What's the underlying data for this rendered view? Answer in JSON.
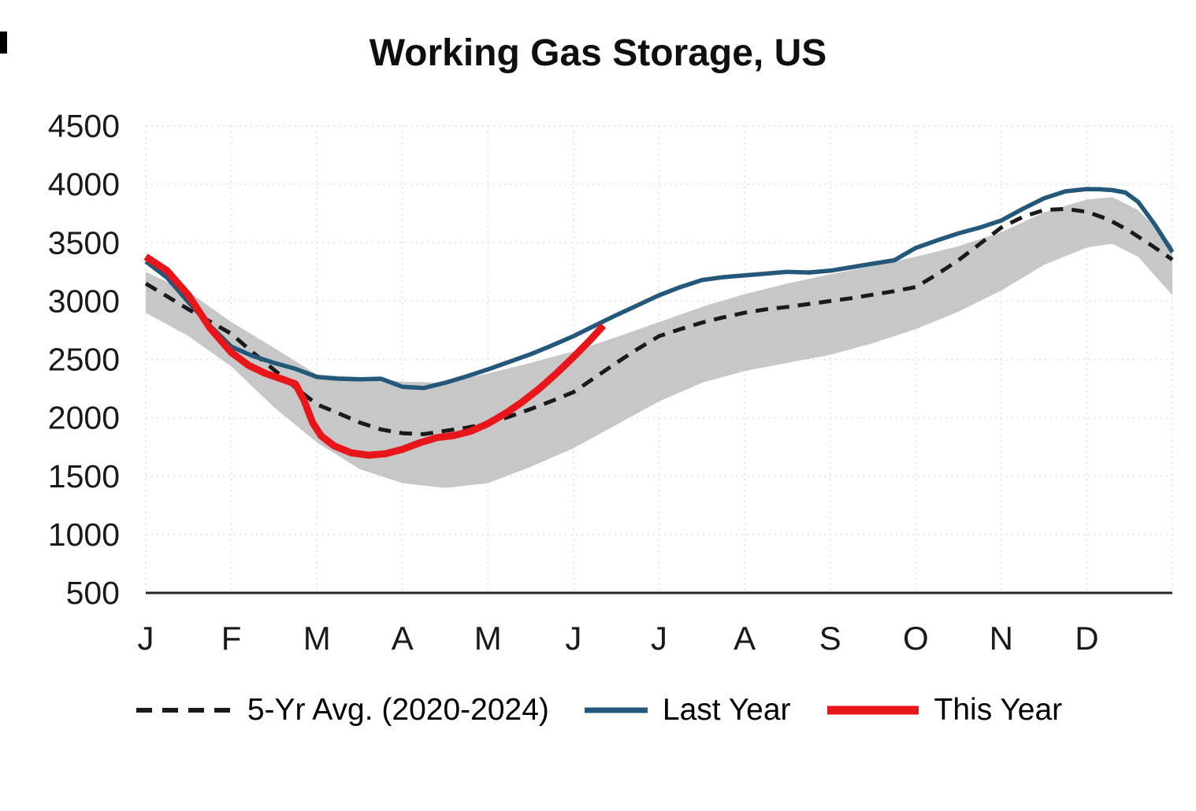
{
  "chart_data": {
    "type": "line",
    "title": "Working Gas Storage, US",
    "xlabel": "",
    "ylabel": "",
    "x_unit": "months, 0 = Jan 1, 12 = Dec 31",
    "ylim": [
      500,
      4500
    ],
    "yticks": [
      500,
      1000,
      1500,
      2000,
      2500,
      3000,
      3500,
      4000,
      4500
    ],
    "month_labels": [
      "J",
      "F",
      "M",
      "A",
      "M",
      "J",
      "J",
      "A",
      "S",
      "O",
      "N",
      "D"
    ],
    "grid": true,
    "legend_position": "bottom",
    "band": {
      "name": "5-year range",
      "color": "#c7c7c7",
      "x": [
        0,
        0.5,
        1,
        1.5,
        2,
        2.5,
        3,
        3.5,
        4,
        4.5,
        5,
        5.5,
        6,
        6.5,
        7,
        7.5,
        8,
        8.5,
        9,
        9.5,
        10,
        10.5,
        11,
        11.3,
        11.6,
        12
      ],
      "upper": [
        3250,
        3080,
        2820,
        2600,
        2370,
        2350,
        2310,
        2300,
        2380,
        2470,
        2570,
        2690,
        2820,
        2950,
        3060,
        3150,
        3230,
        3300,
        3380,
        3470,
        3590,
        3760,
        3870,
        3890,
        3780,
        3480
      ],
      "lower": [
        2900,
        2700,
        2440,
        2090,
        1790,
        1560,
        1440,
        1400,
        1440,
        1580,
        1740,
        1940,
        2140,
        2300,
        2400,
        2470,
        2540,
        2640,
        2760,
        2910,
        3090,
        3310,
        3460,
        3490,
        3380,
        3050
      ]
    },
    "series": [
      {
        "key": "five-yr-avg",
        "name": "5-Yr Avg. (2020-2024)",
        "style": "dashed",
        "color": "#1a1a1a",
        "width": 5,
        "x": [
          0,
          0.25,
          0.5,
          0.75,
          1,
          1.25,
          1.5,
          1.75,
          2,
          2.25,
          2.5,
          2.75,
          3,
          3.25,
          3.5,
          3.75,
          4,
          4.25,
          4.5,
          4.75,
          5,
          5.25,
          5.5,
          5.75,
          6,
          6.25,
          6.5,
          6.75,
          7,
          7.25,
          7.5,
          7.75,
          8,
          8.25,
          8.5,
          8.75,
          9,
          9.25,
          9.5,
          9.75,
          10,
          10.25,
          10.5,
          10.75,
          11,
          11.25,
          11.5,
          11.75,
          12
        ],
        "values": [
          3150,
          3040,
          2930,
          2825,
          2720,
          2560,
          2410,
          2260,
          2115,
          2040,
          1960,
          1900,
          1868,
          1860,
          1888,
          1915,
          1950,
          2010,
          2075,
          2145,
          2220,
          2345,
          2470,
          2590,
          2700,
          2760,
          2815,
          2860,
          2900,
          2930,
          2950,
          2975,
          3000,
          3025,
          3055,
          3085,
          3120,
          3230,
          3350,
          3490,
          3630,
          3720,
          3780,
          3790,
          3765,
          3700,
          3600,
          3480,
          3355
        ]
      },
      {
        "key": "last-year",
        "name": "Last Year",
        "style": "solid",
        "color": "#24587a",
        "width": 5.5,
        "x": [
          0,
          0.25,
          0.5,
          0.75,
          1,
          1.25,
          1.5,
          1.75,
          2,
          2.25,
          2.5,
          2.75,
          3,
          3.25,
          3.5,
          3.75,
          4,
          4.25,
          4.5,
          4.75,
          5,
          5.25,
          5.5,
          5.75,
          6,
          6.25,
          6.5,
          6.75,
          7,
          7.25,
          7.5,
          7.75,
          8,
          8.25,
          8.5,
          8.75,
          9,
          9.25,
          9.5,
          9.75,
          10,
          10.25,
          10.5,
          10.75,
          11,
          11.15,
          11.3,
          11.45,
          11.6,
          11.8,
          12
        ],
        "values": [
          3340,
          3200,
          2990,
          2790,
          2610,
          2530,
          2470,
          2420,
          2350,
          2335,
          2330,
          2335,
          2265,
          2255,
          2300,
          2355,
          2415,
          2480,
          2545,
          2620,
          2700,
          2790,
          2880,
          2965,
          3050,
          3120,
          3180,
          3205,
          3220,
          3235,
          3250,
          3245,
          3260,
          3290,
          3320,
          3350,
          3455,
          3520,
          3580,
          3630,
          3690,
          3790,
          3880,
          3940,
          3960,
          3958,
          3950,
          3930,
          3850,
          3650,
          3420
        ]
      },
      {
        "key": "this-year",
        "name": "This Year",
        "style": "solid",
        "color": "#e8161a",
        "width": 9,
        "x": [
          0,
          0.25,
          0.5,
          0.75,
          1,
          1.2,
          1.4,
          1.6,
          1.75,
          1.85,
          1.95,
          2.05,
          2.2,
          2.4,
          2.6,
          2.8,
          3,
          3.2,
          3.4,
          3.6,
          3.8,
          4,
          4.2,
          4.4,
          4.6,
          4.8,
          5,
          5.2,
          5.35
        ],
        "values": [
          3380,
          3260,
          3050,
          2770,
          2560,
          2450,
          2380,
          2330,
          2290,
          2150,
          1960,
          1845,
          1760,
          1700,
          1680,
          1692,
          1730,
          1785,
          1830,
          1848,
          1885,
          1950,
          2035,
          2135,
          2250,
          2380,
          2520,
          2670,
          2790
        ]
      }
    ]
  }
}
